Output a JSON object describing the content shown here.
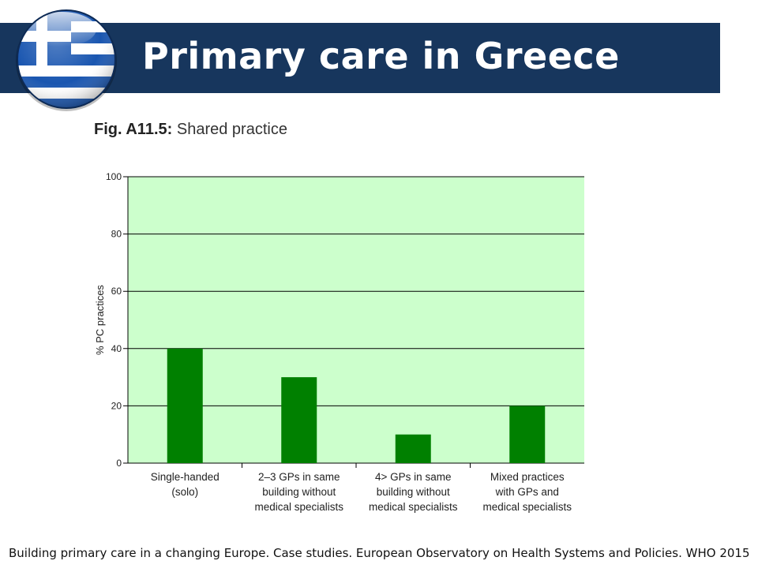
{
  "slide": {
    "title": "Primary care in Greece",
    "flag_icon": "greek-flag-sphere-icon",
    "figure_label": "Fig. A11.5:",
    "figure_title": "Shared practice",
    "source": "Building primary care in a changing Europe. Case studies. European Observatory on Health Systems and Policies. WHO 2015"
  },
  "colors": {
    "title_bar": "#17365d",
    "plot_bg": "#ccffcc",
    "bar": "#008000",
    "grid": "#000000"
  },
  "chart_data": {
    "type": "bar",
    "title": "Shared practice",
    "xlabel": "",
    "ylabel": "% PC practices",
    "ylim": [
      0,
      100
    ],
    "yticks": [
      0,
      20,
      40,
      60,
      80,
      100
    ],
    "grid": true,
    "categories": [
      [
        "Single-handed",
        "(solo)"
      ],
      [
        "2–3 GPs in same",
        "building without",
        "medical specialists"
      ],
      [
        "4> GPs in same",
        "building without",
        "medical specialists"
      ],
      [
        "Mixed practices",
        "with GPs and",
        "medical specialists"
      ]
    ],
    "values": [
      40,
      30,
      10,
      20
    ]
  }
}
